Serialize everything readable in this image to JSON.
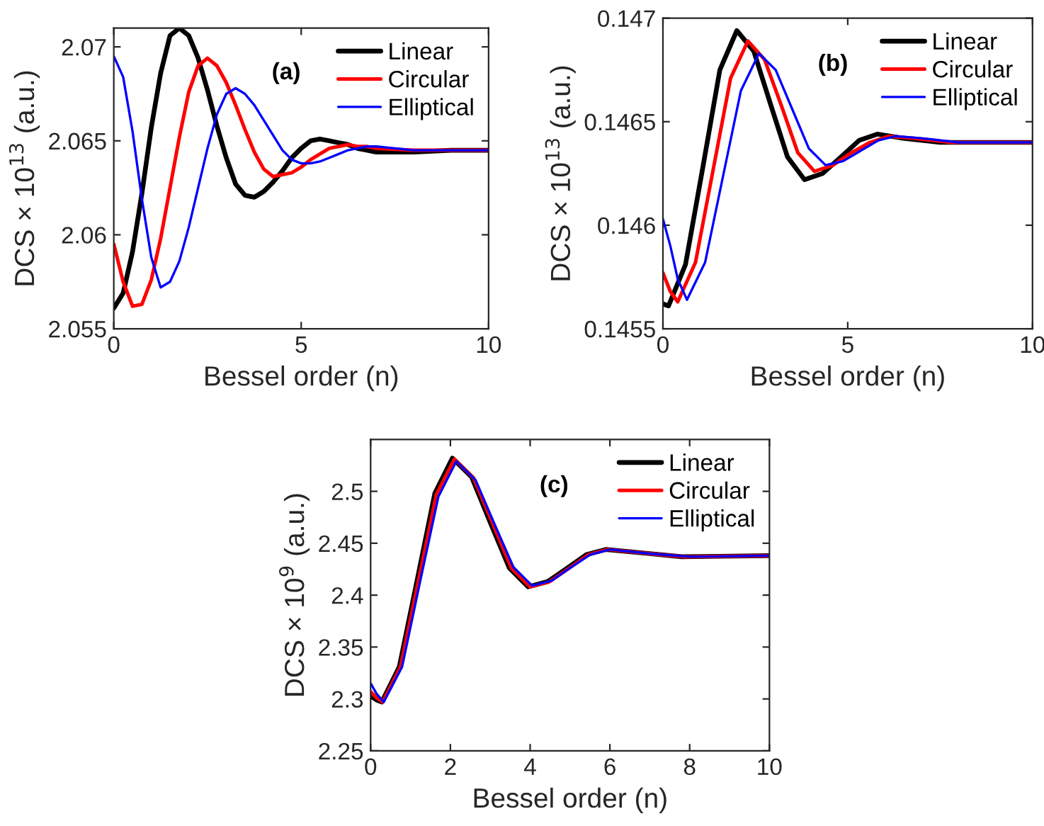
{
  "chart_data": [
    {
      "type": "line",
      "title": "(a)",
      "xlabel": "Bessel order (n)",
      "ylabel": "DCS × 10$^{13}$ (a.u.)",
      "xlim": [
        0,
        10
      ],
      "ylim": [
        2.055,
        2.071
      ],
      "xticks": [
        0,
        5,
        10
      ],
      "yticks": [
        2.055,
        2.06,
        2.065,
        2.07
      ],
      "legend": "top right",
      "grid": false,
      "x": [
        0,
        0.25,
        0.5,
        0.75,
        1,
        1.25,
        1.5,
        1.75,
        2,
        2.25,
        2.5,
        2.75,
        3,
        3.25,
        3.5,
        3.75,
        4,
        4.25,
        4.5,
        4.75,
        5,
        5.25,
        5.5,
        5.75,
        6,
        6.25,
        6.5,
        6.75,
        7,
        8,
        9,
        10
      ],
      "series": [
        {
          "name": "Linear",
          "color": "#000000",
          "values": [
            2.0561,
            2.0569,
            2.0591,
            2.0622,
            2.0657,
            2.0686,
            2.0706,
            2.071,
            2.0706,
            2.0694,
            2.0677,
            2.0658,
            2.0641,
            2.0627,
            2.0621,
            2.062,
            2.0623,
            2.0628,
            2.0634,
            2.0641,
            2.0646,
            2.065,
            2.0651,
            2.065,
            2.0649,
            2.0648,
            2.0646,
            2.0645,
            2.0644,
            2.0644,
            2.0645,
            2.0645
          ]
        },
        {
          "name": "Circular",
          "color": "#ff0000",
          "values": [
            2.0595,
            2.0575,
            2.0562,
            2.0563,
            2.0576,
            2.0598,
            2.0625,
            2.0652,
            2.0676,
            2.069,
            2.0694,
            2.069,
            2.0681,
            2.0669,
            2.0656,
            2.0644,
            2.0635,
            2.0631,
            2.0632,
            2.0633,
            2.0636,
            2.064,
            2.0643,
            2.0646,
            2.0647,
            2.0648,
            2.0647,
            2.0647,
            2.0646,
            2.0645,
            2.0645,
            2.0645
          ]
        },
        {
          "name": "Elliptical",
          "color": "#0000ff",
          "values": [
            2.0695,
            2.0684,
            2.0655,
            2.0619,
            2.0588,
            2.0572,
            2.0575,
            2.0586,
            2.0604,
            2.0625,
            2.0646,
            2.0664,
            2.0675,
            2.0678,
            2.0675,
            2.0669,
            2.0661,
            2.0653,
            2.0645,
            2.064,
            2.0638,
            2.0638,
            2.0639,
            2.0641,
            2.0643,
            2.0645,
            2.0646,
            2.0647,
            2.0647,
            2.0645,
            2.0645,
            2.0645
          ]
        }
      ]
    },
    {
      "type": "line",
      "title": "(b)",
      "xlabel": "Bessel order (n)",
      "ylabel": "DCS × 10$^{13}$ (a.u.)",
      "xlim": [
        0,
        10
      ],
      "ylim": [
        0.1455,
        0.147
      ],
      "xticks": [
        0,
        5,
        10
      ],
      "yticks": [
        0.1455,
        0.146,
        0.1465,
        0.147
      ],
      "legend": "top right",
      "grid": false,
      "series": [
        {
          "name": "Linear",
          "color": "#000000",
          "x": [
            0,
            0.15,
            0.61,
            1.08,
            1.54,
            2.0,
            2.46,
            2.92,
            3.37,
            3.83,
            4.32,
            4.82,
            5.31,
            5.8,
            6.5,
            7.5,
            10
          ],
          "values": [
            0.14562,
            0.14561,
            0.14581,
            0.14628,
            0.14675,
            0.14694,
            0.14684,
            0.14658,
            0.14633,
            0.14622,
            0.14625,
            0.14633,
            0.14641,
            0.14644,
            0.14642,
            0.1464,
            0.1464
          ]
        },
        {
          "name": "Circular",
          "color": "#ff0000",
          "x": [
            0,
            0.2,
            0.4,
            0.88,
            1.35,
            1.83,
            2.3,
            2.75,
            3.2,
            3.65,
            4.1,
            4.6,
            5.1,
            5.6,
            6.1,
            6.8,
            7.8,
            10
          ],
          "values": [
            0.14577,
            0.14568,
            0.14563,
            0.14582,
            0.14626,
            0.14671,
            0.14689,
            0.1468,
            0.14658,
            0.14635,
            0.14626,
            0.14629,
            0.14635,
            0.1464,
            0.14643,
            0.14642,
            0.1464,
            0.1464
          ]
        },
        {
          "name": "Elliptical",
          "color": "#0000ff",
          "x": [
            0,
            0.2,
            0.4,
            0.65,
            1.14,
            1.63,
            2.11,
            2.6,
            3.05,
            3.5,
            3.95,
            4.4,
            4.88,
            5.35,
            5.83,
            6.3,
            7,
            8,
            10
          ],
          "values": [
            0.14603,
            0.1459,
            0.14574,
            0.14564,
            0.14582,
            0.14624,
            0.14665,
            0.14683,
            0.14675,
            0.14656,
            0.14637,
            0.14629,
            0.14631,
            0.14636,
            0.14641,
            0.14643,
            0.14642,
            0.1464,
            0.1464
          ]
        }
      ]
    },
    {
      "type": "line",
      "title": "(c)",
      "xlabel": "Bessel order (n)",
      "ylabel": "DCS × 10$^{9}$ (a.u.)",
      "xlim": [
        0,
        10
      ],
      "ylim": [
        2.25,
        2.55
      ],
      "xticks": [
        0,
        2,
        4,
        6,
        8,
        10
      ],
      "yticks": [
        2.25,
        2.3,
        2.35,
        2.4,
        2.45,
        2.5
      ],
      "legend": "top right",
      "grid": false,
      "series": [
        {
          "name": "Linear",
          "color": "#000000",
          "x": [
            0,
            0.15,
            0.28,
            0.72,
            1.17,
            1.61,
            2.05,
            2.53,
            3.0,
            3.48,
            3.95,
            4.44,
            4.93,
            5.41,
            5.9,
            7,
            7.8,
            10
          ],
          "values": [
            2.303,
            2.299,
            2.297,
            2.331,
            2.415,
            2.498,
            2.532,
            2.514,
            2.47,
            2.426,
            2.408,
            2.413,
            2.426,
            2.439,
            2.444,
            2.44,
            2.437,
            2.438
          ]
        },
        {
          "name": "Circular",
          "color": "#ff0000",
          "x": [
            0,
            0.15,
            0.3,
            0.75,
            1.2,
            1.65,
            2.1,
            2.58,
            3.05,
            3.53,
            4.0,
            4.49,
            4.98,
            5.46,
            5.95,
            7,
            7.9,
            10
          ],
          "values": [
            2.307,
            2.301,
            2.297,
            2.331,
            2.414,
            2.497,
            2.531,
            2.513,
            2.47,
            2.426,
            2.408,
            2.413,
            2.426,
            2.439,
            2.444,
            2.44,
            2.437,
            2.438
          ]
        },
        {
          "name": "Elliptical",
          "color": "#0000ff",
          "x": [
            0,
            0.15,
            0.33,
            0.79,
            1.24,
            1.7,
            2.15,
            2.63,
            3.1,
            3.58,
            4.05,
            4.54,
            5.03,
            5.51,
            6.0,
            7,
            8,
            10
          ],
          "values": [
            2.315,
            2.305,
            2.297,
            2.331,
            2.413,
            2.495,
            2.529,
            2.511,
            2.469,
            2.427,
            2.409,
            2.414,
            2.427,
            2.439,
            2.444,
            2.44,
            2.437,
            2.438
          ]
        }
      ]
    }
  ]
}
